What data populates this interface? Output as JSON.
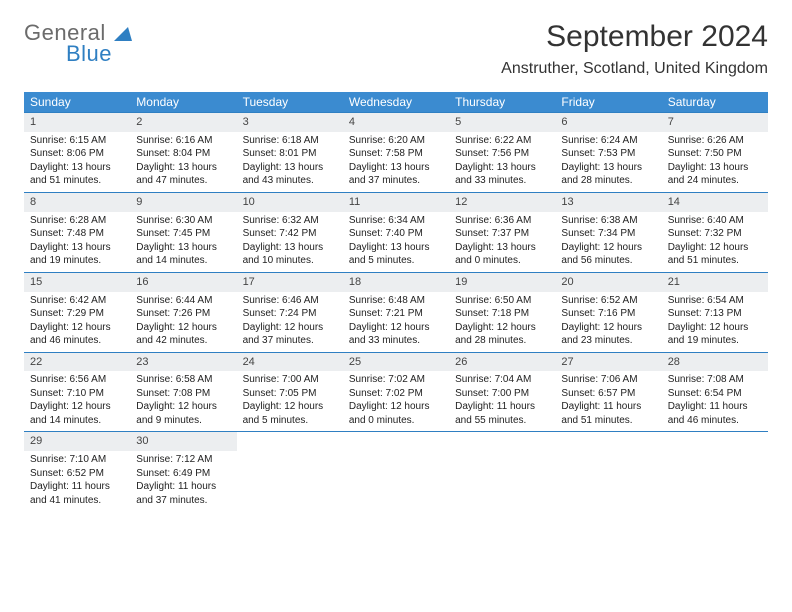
{
  "logo": {
    "word1": "General",
    "word2": "Blue"
  },
  "title": "September 2024",
  "location": "Anstruther, Scotland, United Kingdom",
  "colors": {
    "header_bg": "#3b8bd0",
    "header_text": "#ffffff",
    "daynum_bg": "#eceef0",
    "border": "#2f7fc2",
    "logo_gray": "#6b6b6b",
    "logo_blue": "#2f7fc2"
  },
  "weekdays": [
    "Sunday",
    "Monday",
    "Tuesday",
    "Wednesday",
    "Thursday",
    "Friday",
    "Saturday"
  ],
  "weeks": [
    [
      {
        "n": "1",
        "sunrise": "Sunrise: 6:15 AM",
        "sunset": "Sunset: 8:06 PM",
        "day": "Daylight: 13 hours and 51 minutes."
      },
      {
        "n": "2",
        "sunrise": "Sunrise: 6:16 AM",
        "sunset": "Sunset: 8:04 PM",
        "day": "Daylight: 13 hours and 47 minutes."
      },
      {
        "n": "3",
        "sunrise": "Sunrise: 6:18 AM",
        "sunset": "Sunset: 8:01 PM",
        "day": "Daylight: 13 hours and 43 minutes."
      },
      {
        "n": "4",
        "sunrise": "Sunrise: 6:20 AM",
        "sunset": "Sunset: 7:58 PM",
        "day": "Daylight: 13 hours and 37 minutes."
      },
      {
        "n": "5",
        "sunrise": "Sunrise: 6:22 AM",
        "sunset": "Sunset: 7:56 PM",
        "day": "Daylight: 13 hours and 33 minutes."
      },
      {
        "n": "6",
        "sunrise": "Sunrise: 6:24 AM",
        "sunset": "Sunset: 7:53 PM",
        "day": "Daylight: 13 hours and 28 minutes."
      },
      {
        "n": "7",
        "sunrise": "Sunrise: 6:26 AM",
        "sunset": "Sunset: 7:50 PM",
        "day": "Daylight: 13 hours and 24 minutes."
      }
    ],
    [
      {
        "n": "8",
        "sunrise": "Sunrise: 6:28 AM",
        "sunset": "Sunset: 7:48 PM",
        "day": "Daylight: 13 hours and 19 minutes."
      },
      {
        "n": "9",
        "sunrise": "Sunrise: 6:30 AM",
        "sunset": "Sunset: 7:45 PM",
        "day": "Daylight: 13 hours and 14 minutes."
      },
      {
        "n": "10",
        "sunrise": "Sunrise: 6:32 AM",
        "sunset": "Sunset: 7:42 PM",
        "day": "Daylight: 13 hours and 10 minutes."
      },
      {
        "n": "11",
        "sunrise": "Sunrise: 6:34 AM",
        "sunset": "Sunset: 7:40 PM",
        "day": "Daylight: 13 hours and 5 minutes."
      },
      {
        "n": "12",
        "sunrise": "Sunrise: 6:36 AM",
        "sunset": "Sunset: 7:37 PM",
        "day": "Daylight: 13 hours and 0 minutes."
      },
      {
        "n": "13",
        "sunrise": "Sunrise: 6:38 AM",
        "sunset": "Sunset: 7:34 PM",
        "day": "Daylight: 12 hours and 56 minutes."
      },
      {
        "n": "14",
        "sunrise": "Sunrise: 6:40 AM",
        "sunset": "Sunset: 7:32 PM",
        "day": "Daylight: 12 hours and 51 minutes."
      }
    ],
    [
      {
        "n": "15",
        "sunrise": "Sunrise: 6:42 AM",
        "sunset": "Sunset: 7:29 PM",
        "day": "Daylight: 12 hours and 46 minutes."
      },
      {
        "n": "16",
        "sunrise": "Sunrise: 6:44 AM",
        "sunset": "Sunset: 7:26 PM",
        "day": "Daylight: 12 hours and 42 minutes."
      },
      {
        "n": "17",
        "sunrise": "Sunrise: 6:46 AM",
        "sunset": "Sunset: 7:24 PM",
        "day": "Daylight: 12 hours and 37 minutes."
      },
      {
        "n": "18",
        "sunrise": "Sunrise: 6:48 AM",
        "sunset": "Sunset: 7:21 PM",
        "day": "Daylight: 12 hours and 33 minutes."
      },
      {
        "n": "19",
        "sunrise": "Sunrise: 6:50 AM",
        "sunset": "Sunset: 7:18 PM",
        "day": "Daylight: 12 hours and 28 minutes."
      },
      {
        "n": "20",
        "sunrise": "Sunrise: 6:52 AM",
        "sunset": "Sunset: 7:16 PM",
        "day": "Daylight: 12 hours and 23 minutes."
      },
      {
        "n": "21",
        "sunrise": "Sunrise: 6:54 AM",
        "sunset": "Sunset: 7:13 PM",
        "day": "Daylight: 12 hours and 19 minutes."
      }
    ],
    [
      {
        "n": "22",
        "sunrise": "Sunrise: 6:56 AM",
        "sunset": "Sunset: 7:10 PM",
        "day": "Daylight: 12 hours and 14 minutes."
      },
      {
        "n": "23",
        "sunrise": "Sunrise: 6:58 AM",
        "sunset": "Sunset: 7:08 PM",
        "day": "Daylight: 12 hours and 9 minutes."
      },
      {
        "n": "24",
        "sunrise": "Sunrise: 7:00 AM",
        "sunset": "Sunset: 7:05 PM",
        "day": "Daylight: 12 hours and 5 minutes."
      },
      {
        "n": "25",
        "sunrise": "Sunrise: 7:02 AM",
        "sunset": "Sunset: 7:02 PM",
        "day": "Daylight: 12 hours and 0 minutes."
      },
      {
        "n": "26",
        "sunrise": "Sunrise: 7:04 AM",
        "sunset": "Sunset: 7:00 PM",
        "day": "Daylight: 11 hours and 55 minutes."
      },
      {
        "n": "27",
        "sunrise": "Sunrise: 7:06 AM",
        "sunset": "Sunset: 6:57 PM",
        "day": "Daylight: 11 hours and 51 minutes."
      },
      {
        "n": "28",
        "sunrise": "Sunrise: 7:08 AM",
        "sunset": "Sunset: 6:54 PM",
        "day": "Daylight: 11 hours and 46 minutes."
      }
    ],
    [
      {
        "n": "29",
        "sunrise": "Sunrise: 7:10 AM",
        "sunset": "Sunset: 6:52 PM",
        "day": "Daylight: 11 hours and 41 minutes."
      },
      {
        "n": "30",
        "sunrise": "Sunrise: 7:12 AM",
        "sunset": "Sunset: 6:49 PM",
        "day": "Daylight: 11 hours and 37 minutes."
      },
      null,
      null,
      null,
      null,
      null
    ]
  ]
}
